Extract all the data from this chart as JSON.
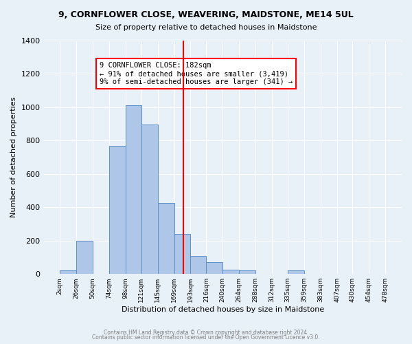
{
  "title": "9, CORNFLOWER CLOSE, WEAVERING, MAIDSTONE, ME14 5UL",
  "subtitle": "Size of property relative to detached houses in Maidstone",
  "xlabel": "Distribution of detached houses by size in Maidstone",
  "ylabel": "Number of detached properties",
  "bin_labels": [
    "2sqm",
    "26sqm",
    "50sqm",
    "74sqm",
    "98sqm",
    "121sqm",
    "145sqm",
    "169sqm",
    "193sqm",
    "216sqm",
    "240sqm",
    "264sqm",
    "288sqm",
    "312sqm",
    "335sqm",
    "359sqm",
    "383sqm",
    "407sqm",
    "430sqm",
    "454sqm",
    "478sqm"
  ],
  "bin_edges": [
    2,
    26,
    50,
    74,
    98,
    121,
    145,
    169,
    193,
    216,
    240,
    264,
    288,
    312,
    335,
    359,
    383,
    407,
    430,
    454,
    478
  ],
  "bar_heights": [
    20,
    200,
    0,
    770,
    1010,
    895,
    425,
    240,
    110,
    70,
    25,
    20,
    0,
    0,
    20,
    0,
    0,
    0,
    0,
    0
  ],
  "bar_color": "#aec6e8",
  "bar_edge_color": "#5b8fc9",
  "vline_x": 182,
  "vline_color": "red",
  "ylim": [
    0,
    1400
  ],
  "annotation_title": "9 CORNFLOWER CLOSE: 182sqm",
  "annotation_line1": "← 91% of detached houses are smaller (3,419)",
  "annotation_line2": "9% of semi-detached houses are larger (341) →",
  "annotation_box_color": "white",
  "annotation_box_edge_color": "red",
  "footer1": "Contains HM Land Registry data © Crown copyright and database right 2024.",
  "footer2": "Contains public sector information licensed under the Open Government Licence v3.0.",
  "bg_color": "#e8f0f8",
  "plot_bg_color": "#e8f0f8"
}
